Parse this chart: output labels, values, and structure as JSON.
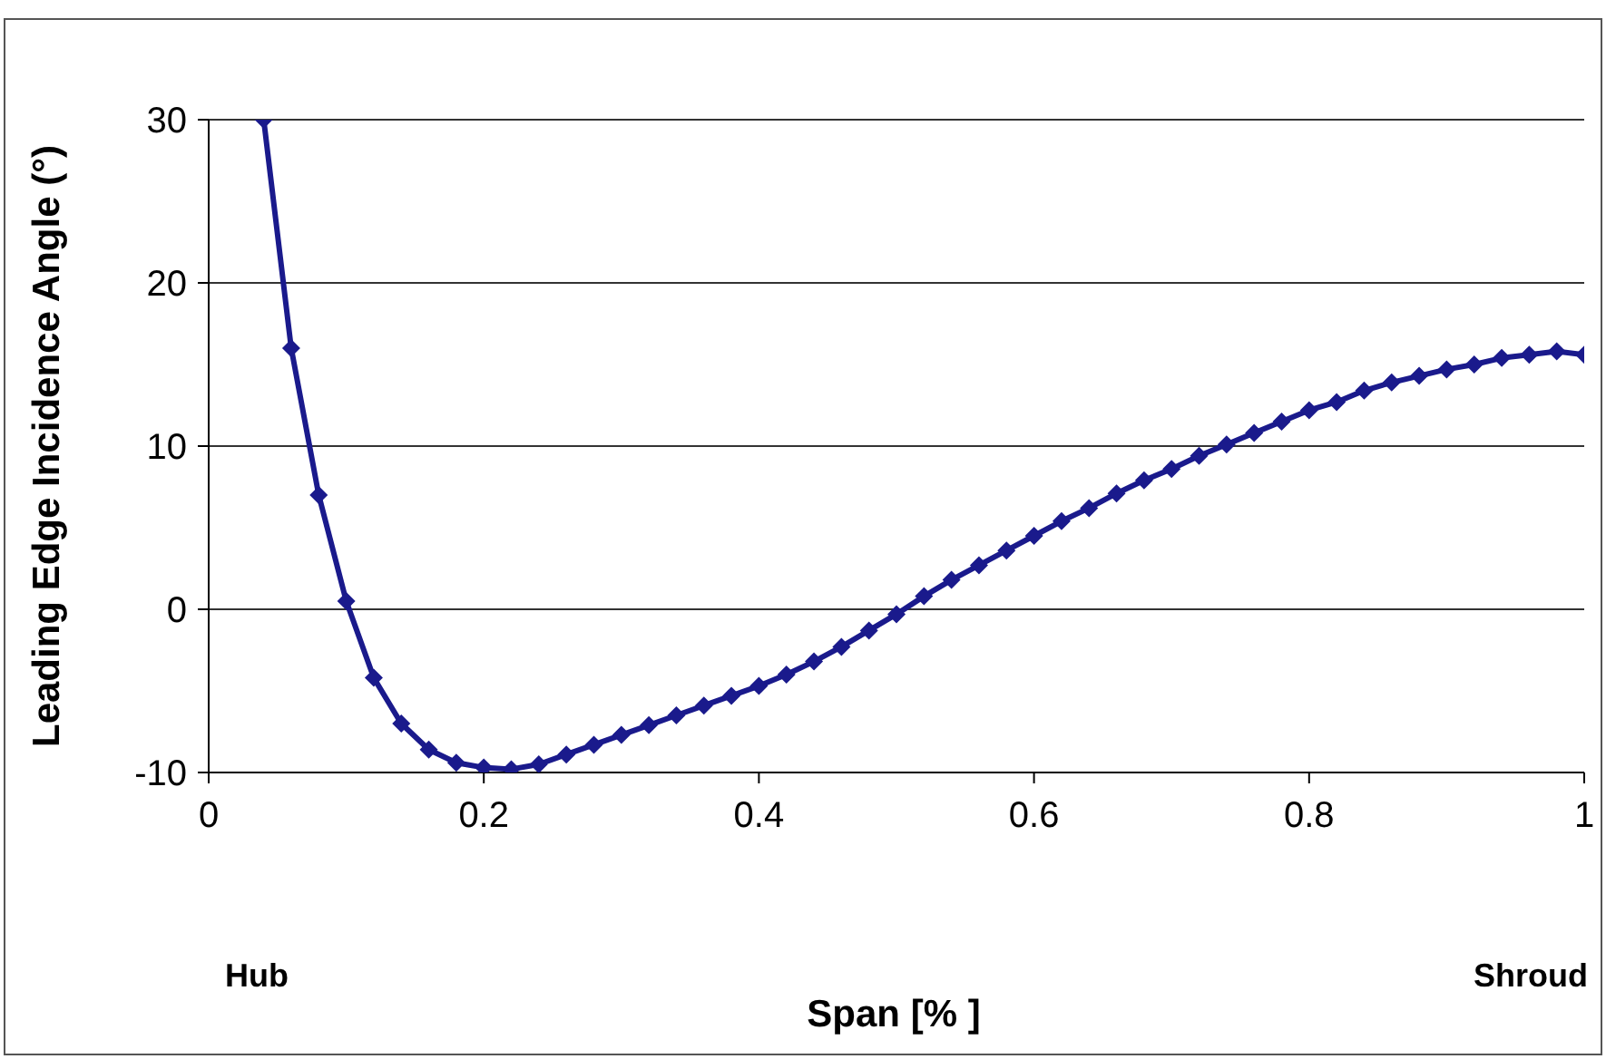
{
  "chart_data": {
    "type": "line",
    "xlabel": "Span [% ]",
    "ylabel": "Leading Edge Incidence Angle (°)",
    "annotations": [
      "Hub",
      "Shroud"
    ],
    "x": [
      0.04,
      0.06,
      0.08,
      0.1,
      0.12,
      0.14,
      0.16,
      0.18,
      0.2,
      0.22,
      0.24,
      0.26,
      0.28,
      0.3,
      0.32,
      0.34,
      0.36,
      0.38,
      0.4,
      0.42,
      0.44,
      0.46,
      0.48,
      0.5,
      0.52,
      0.54,
      0.56,
      0.58,
      0.6,
      0.62,
      0.64,
      0.66,
      0.68,
      0.7,
      0.72,
      0.74,
      0.76,
      0.78,
      0.8,
      0.82,
      0.84,
      0.86,
      0.88,
      0.9,
      0.92,
      0.94,
      0.96,
      0.98,
      1.0
    ],
    "series": [
      {
        "color": "#1a1a8c",
        "values": [
          30,
          16,
          7,
          0.5,
          -4.2,
          -7,
          -8.6,
          -9.4,
          -9.7,
          -9.8,
          -9.5,
          -8.9,
          -8.3,
          -7.7,
          -7.1,
          -6.5,
          -5.9,
          -5.3,
          -4.7,
          -4.0,
          -3.2,
          -2.3,
          -1.3,
          -0.3,
          0.8,
          1.8,
          2.7,
          3.6,
          4.5,
          5.4,
          6.2,
          7.1,
          7.9,
          8.6,
          9.4,
          10.1,
          10.8,
          11.5,
          12.2,
          12.7,
          13.4,
          13.9,
          14.3,
          14.7,
          15.0,
          15.4,
          15.6,
          15.8,
          15.6
        ]
      }
    ],
    "xlim": [
      0,
      1
    ],
    "xticks": [
      0,
      0.2,
      0.4,
      0.6,
      0.8,
      1
    ],
    "ylim": [
      -10,
      30
    ],
    "yticks": [
      -10,
      0,
      10,
      20,
      30
    ],
    "grid": "y",
    "marker": "diamond",
    "line_style": "solid"
  }
}
